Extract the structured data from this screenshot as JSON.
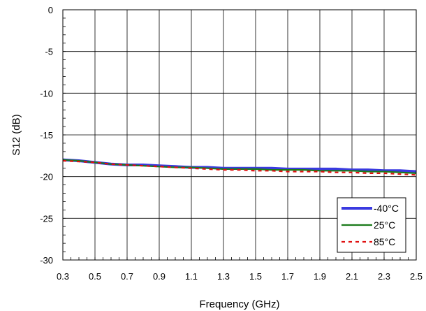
{
  "chart_data": {
    "type": "line",
    "title": "",
    "xlabel": "Frequency (GHz)",
    "ylabel": "S12 (dB)",
    "xlim": [
      0.3,
      2.5
    ],
    "ylim": [
      -30,
      0
    ],
    "x_ticks": [
      "0.3",
      "0.5",
      "0.7",
      "0.9",
      "1.1",
      "1.3",
      "1.5",
      "1.7",
      "1.9",
      "2.1",
      "2.3",
      "2.5"
    ],
    "y_ticks": [
      "0",
      "-5",
      "-10",
      "-15",
      "-20",
      "-25",
      "-30"
    ],
    "grid": true,
    "legend_position": "bottom-right",
    "series": [
      {
        "name": "-40°C",
        "color": "#3a3ae0",
        "style": "solid-thick",
        "x": [
          0.3,
          0.4,
          0.5,
          0.6,
          0.7,
          0.8,
          0.9,
          1.0,
          1.1,
          1.2,
          1.3,
          1.4,
          1.5,
          1.6,
          1.7,
          1.8,
          1.9,
          2.0,
          2.1,
          2.2,
          2.3,
          2.4,
          2.5
        ],
        "y": [
          -18.0,
          -18.1,
          -18.3,
          -18.5,
          -18.6,
          -18.6,
          -18.7,
          -18.8,
          -18.9,
          -18.9,
          -19.0,
          -19.0,
          -19.0,
          -19.0,
          -19.1,
          -19.1,
          -19.1,
          -19.1,
          -19.2,
          -19.2,
          -19.3,
          -19.3,
          -19.4
        ]
      },
      {
        "name": "25°C",
        "color": "#1a7a1a",
        "style": "solid",
        "x": [
          0.3,
          0.4,
          0.5,
          0.6,
          0.7,
          0.8,
          0.9,
          1.0,
          1.1,
          1.2,
          1.3,
          1.4,
          1.5,
          1.6,
          1.7,
          1.8,
          1.9,
          2.0,
          2.1,
          2.2,
          2.3,
          2.4,
          2.5
        ],
        "y": [
          -18.0,
          -18.1,
          -18.3,
          -18.5,
          -18.6,
          -18.7,
          -18.8,
          -18.9,
          -18.9,
          -19.0,
          -19.1,
          -19.1,
          -19.1,
          -19.2,
          -19.2,
          -19.2,
          -19.3,
          -19.3,
          -19.3,
          -19.4,
          -19.4,
          -19.5,
          -19.6
        ]
      },
      {
        "name": "85°C",
        "color": "#e01010",
        "style": "dashed",
        "x": [
          0.3,
          0.4,
          0.5,
          0.6,
          0.7,
          0.8,
          0.9,
          1.0,
          1.1,
          1.2,
          1.3,
          1.4,
          1.5,
          1.6,
          1.7,
          1.8,
          1.9,
          2.0,
          2.1,
          2.2,
          2.3,
          2.4,
          2.5
        ],
        "y": [
          -18.1,
          -18.2,
          -18.3,
          -18.5,
          -18.6,
          -18.7,
          -18.8,
          -18.9,
          -19.0,
          -19.1,
          -19.2,
          -19.2,
          -19.3,
          -19.3,
          -19.4,
          -19.4,
          -19.4,
          -19.5,
          -19.5,
          -19.6,
          -19.6,
          -19.7,
          -19.8
        ]
      }
    ]
  }
}
